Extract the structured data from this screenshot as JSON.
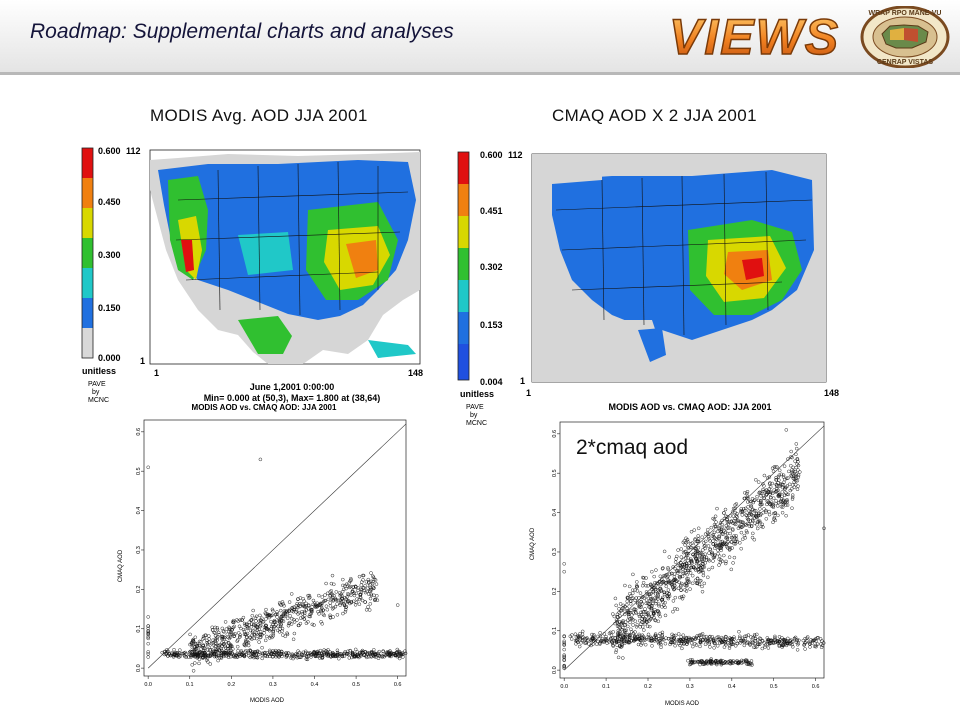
{
  "slide": {
    "title": "Roadmap: Supplemental charts and analyses",
    "logo_text": "VIEWS",
    "seal_text_top": "WRAP RPO MANE-VU",
    "seal_text_bottom": "CENRAP VISTAS"
  },
  "maps": [
    {
      "title": "MODIS Avg. AOD JJA 2001",
      "colorbar_ticks": [
        "0.600",
        "0.450",
        "0.300",
        "0.150",
        "0.000"
      ],
      "colorbar_colors": [
        "#e01010",
        "#f08010",
        "#d8d800",
        "#30c030",
        "#20c8c8",
        "#2070e0",
        "#d8d8d8"
      ],
      "unit_label": "unitless",
      "credit_lines": [
        "PAVE",
        "by",
        "MCNC"
      ],
      "y_top": "112",
      "y_bottom": "1",
      "x_left": "1",
      "x_right": "148",
      "footer_lines": [
        "June 1,2001 0:00:00",
        "Min=  0.000 at (50,3), Max=  1.800 at (38,64)"
      ]
    },
    {
      "title": "CMAQ AOD X 2 JJA 2001",
      "colorbar_ticks": [
        "0.600",
        "0.451",
        "0.302",
        "0.153",
        "0.004"
      ],
      "colorbar_colors": [
        "#e01010",
        "#f08010",
        "#d8d800",
        "#30c030",
        "#20c8c8",
        "#2070e0",
        "#2050e0"
      ],
      "unit_label": "unitless",
      "credit_lines": [
        "PAVE",
        "by",
        "MCNC"
      ],
      "y_top": "112",
      "y_bottom": "1",
      "x_left": "1",
      "x_right": "148"
    }
  ],
  "annotation": "2*cmaq aod",
  "chart_data": [
    {
      "type": "scatter",
      "title": "MODIS AOD vs. CMAQ AOD: JJA 2001",
      "xlabel": "MODIS AOD",
      "ylabel": "CMAQ AOD",
      "xlim": [
        -0.01,
        0.62
      ],
      "ylim": [
        -0.02,
        0.63
      ],
      "x_ticks": [
        "0.0",
        "0.1",
        "0.2",
        "0.3",
        "0.4",
        "0.5",
        "0.6"
      ],
      "y_ticks": [
        "0.0",
        "0.1",
        "0.2",
        "0.3",
        "0.4",
        "0.5",
        "0.6"
      ],
      "reference_line": "1:1",
      "clusters": [
        {
          "x": [
            0.04,
            0.62
          ],
          "y_center": [
            0.035,
            0.035
          ],
          "y_spread": 0.01,
          "n": 520
        },
        {
          "x": [
            0.1,
            0.55
          ],
          "y_center": [
            0.04,
            0.21
          ],
          "y_spread": 0.045,
          "n": 650
        },
        {
          "x": [
            0.0,
            0.0
          ],
          "y_center": [
            0.02,
            0.11
          ],
          "y_spread": 0.0,
          "n": 14
        }
      ],
      "points": [
        {
          "x": 0.0,
          "y": 0.51
        },
        {
          "x": 0.27,
          "y": 0.53
        },
        {
          "x": 0.0,
          "y": 0.13
        },
        {
          "x": 0.6,
          "y": 0.16
        }
      ]
    },
    {
      "type": "scatter",
      "title": "MODIS AOD vs. CMAQ AOD: JJA 2001",
      "xlabel": "MODIS AOD",
      "ylabel": "CMAQ AOD",
      "xlim": [
        -0.01,
        0.62
      ],
      "ylim": [
        -0.02,
        0.63
      ],
      "x_ticks": [
        "0.0",
        "0.1",
        "0.2",
        "0.3",
        "0.4",
        "0.5",
        "0.6"
      ],
      "y_ticks": [
        "0.0",
        "0.1",
        "0.2",
        "0.3",
        "0.4",
        "0.5",
        "0.6"
      ],
      "reference_line": "1:1",
      "clusters": [
        {
          "x": [
            0.02,
            0.62
          ],
          "y_center": [
            0.08,
            0.07
          ],
          "y_spread": 0.016,
          "n": 520
        },
        {
          "x": [
            0.12,
            0.56
          ],
          "y_center": [
            0.1,
            0.5
          ],
          "y_spread": 0.07,
          "n": 1000
        },
        {
          "x": [
            0.3,
            0.45
          ],
          "y_center": [
            0.02,
            0.02
          ],
          "y_spread": 0.006,
          "n": 120
        },
        {
          "x": [
            0.0,
            0.0
          ],
          "y_center": [
            0.0,
            0.1
          ],
          "y_spread": 0.0,
          "n": 16
        }
      ],
      "points": [
        {
          "x": 0.0,
          "y": 0.25
        },
        {
          "x": 0.0,
          "y": 0.27
        },
        {
          "x": 0.53,
          "y": 0.61
        },
        {
          "x": 0.62,
          "y": 0.36
        }
      ]
    }
  ]
}
